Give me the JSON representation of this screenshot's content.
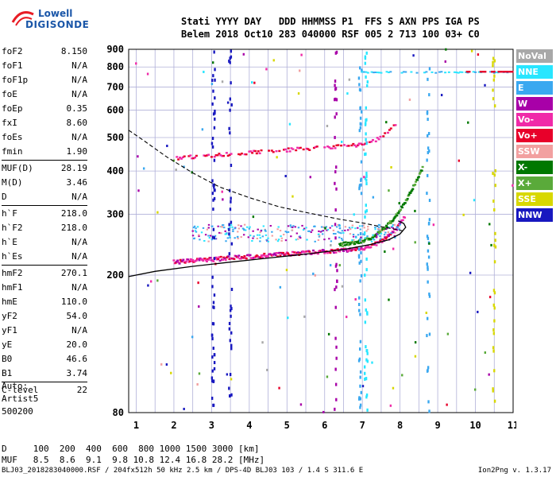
{
  "logo": {
    "line1": "Lowell",
    "line2": "DIGISONDE"
  },
  "header": {
    "labels": "Stati YYYY DAY   DDD HHMMSS P1  FFS S AXN PPS IGA PS",
    "values": "Belem 2018 Oct10 283 040000 RSF 005 2 713 100 03+ C0"
  },
  "params": {
    "groups": [
      [
        [
          "foF2",
          "8.150"
        ],
        [
          "foF1",
          "N/A"
        ],
        [
          "foF1p",
          "N/A"
        ],
        [
          "foE",
          "N/A"
        ],
        [
          "foEp",
          "0.35"
        ],
        [
          "fxI",
          "8.60"
        ],
        [
          "foEs",
          "N/A"
        ],
        [
          "fmin",
          "1.90"
        ]
      ],
      [
        [
          "MUF(D)",
          "28.19"
        ],
        [
          "M(D)",
          "3.46"
        ],
        [
          "D",
          "N/A"
        ]
      ],
      [
        [
          "h`F",
          "218.0"
        ],
        [
          "h`F2",
          "218.0"
        ],
        [
          "h`E",
          "N/A"
        ],
        [
          "h`Es",
          "N/A"
        ]
      ],
      [
        [
          "hmF2",
          "270.1"
        ],
        [
          "hmF1",
          "N/A"
        ],
        [
          "hmE",
          "110.0"
        ],
        [
          "yF2",
          "54.0"
        ],
        [
          "yF1",
          "N/A"
        ],
        [
          "yE",
          "20.0"
        ],
        [
          "B0",
          "46.6"
        ],
        [
          "B1",
          "3.74"
        ]
      ],
      [
        [
          "C-level",
          "22"
        ]
      ]
    ]
  },
  "auto": {
    "line1": "Auto:",
    "line2": "Artist5",
    "line3": "500200"
  },
  "bottom": {
    "d_line": "D     100  200  400  600  800 1000 1500 3000 [km]",
    "muf_line": "MUF   8.5  8.6  9.1  9.8 10.8 12.4 16.8 28.2 [MHz]"
  },
  "footer": {
    "left": "BLJ03_2018283040000.RSF / 204fx512h 50 kHz 2.5 km / DPS-4D BLJ03 103 / 1.4 S 311.6 E",
    "right": "Ion2Png v. 1.3.17"
  },
  "legend": [
    {
      "label": "NoVal",
      "color": "#a8a8a8"
    },
    {
      "label": "NNE",
      "color": "#28e6ff"
    },
    {
      "label": "E",
      "color": "#3aa8f0"
    },
    {
      "label": "W",
      "color": "#a800a8"
    },
    {
      "label": "Vo-",
      "color": "#f02aa8"
    },
    {
      "label": "Vo+",
      "color": "#e8002a"
    },
    {
      "label": "SSW",
      "color": "#f2a0a0"
    },
    {
      "label": "X-",
      "color": "#007800"
    },
    {
      "label": "X+",
      "color": "#5aaa3a"
    },
    {
      "label": "SSE",
      "color": "#d8d800"
    },
    {
      "label": "NNW",
      "color": "#1818c0"
    }
  ],
  "chart_data": {
    "type": "scatter",
    "xlim": [
      0.8,
      11.0
    ],
    "ylim": [
      80,
      900
    ],
    "y_scale": "log",
    "x_ticks": [
      1,
      2,
      3,
      4,
      5,
      6,
      7,
      8,
      9,
      10,
      11
    ],
    "y_ticks": [
      80,
      200,
      300,
      400,
      500,
      600,
      700,
      800,
      900
    ],
    "grid": true,
    "x_grid_step": 0.5,
    "fmin": 1.9,
    "foF2": 8.15,
    "fxI": 8.6,
    "muf_line": {
      "frequencies": [
        8.5,
        8.6,
        9.1,
        9.8,
        10.8,
        12.4,
        16.8,
        28.2
      ],
      "distances_km": [
        100,
        200,
        400,
        600,
        800,
        1000,
        1500,
        3000
      ]
    },
    "profile_solid": {
      "x": [
        0.8,
        1.5,
        2.5,
        3.5,
        4.5,
        5.5,
        6.5,
        7.2,
        7.7,
        8.0,
        8.15,
        8.1,
        7.95
      ],
      "y": [
        198,
        205,
        212,
        218,
        224,
        230,
        237,
        245,
        253,
        263,
        275,
        282,
        287
      ]
    },
    "profile_dashed": {
      "x": [
        0.8,
        1.2,
        1.8,
        2.5,
        3.2,
        4.0,
        4.8,
        5.6,
        6.4,
        7.0,
        7.5,
        7.9,
        8.1
      ],
      "y": [
        525,
        490,
        440,
        395,
        360,
        335,
        315,
        302,
        290,
        283,
        276,
        271,
        268
      ]
    }
  }
}
